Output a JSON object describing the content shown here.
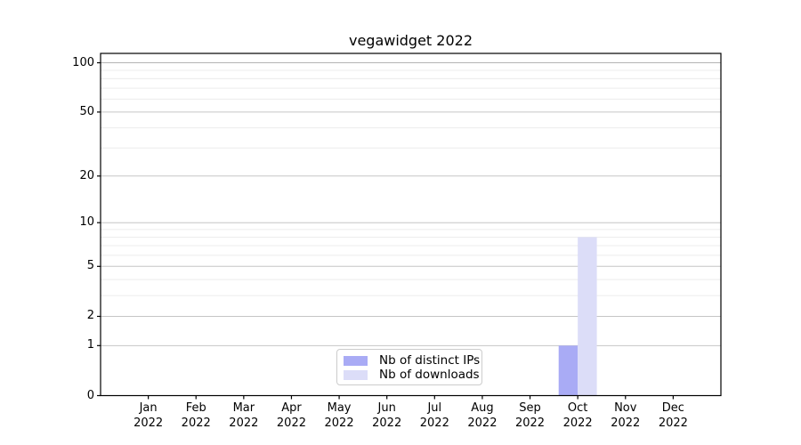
{
  "title": "vegawidget 2022",
  "colors": {
    "distinct_ips": "#a9abf5",
    "downloads": "#dcddf8",
    "major_grid": "#c6c6c6",
    "top_grid": "#b4b4b4",
    "minor_grid": "#ececec",
    "axis": "#000000",
    "background": "#ffffff",
    "legend_border": "#cccccc"
  },
  "legend": {
    "items": [
      {
        "label": "Nb of distinct IPs",
        "color": "#a9abf5"
      },
      {
        "label": "Nb of downloads",
        "color": "#dcddf8"
      }
    ]
  },
  "chart_data": {
    "type": "bar",
    "title": "vegawidget 2022",
    "categories": [
      "Jan 2022",
      "Feb 2022",
      "Mar 2022",
      "Apr 2022",
      "May 2022",
      "Jun 2022",
      "Jul 2022",
      "Aug 2022",
      "Sep 2022",
      "Oct 2022",
      "Nov 2022",
      "Dec 2022"
    ],
    "series": [
      {
        "name": "Nb of distinct IPs",
        "color": "#a9abf5",
        "values": [
          0,
          0,
          0,
          0,
          0,
          0,
          0,
          0,
          0,
          1,
          0,
          0
        ]
      },
      {
        "name": "Nb of downloads",
        "color": "#dcddf8",
        "values": [
          0,
          0,
          0,
          0,
          0,
          0,
          0,
          0,
          0,
          8,
          0,
          0
        ]
      }
    ],
    "xlabel": "",
    "ylabel": "",
    "y_scale": "log1p",
    "ylim": [
      0,
      114
    ],
    "y_ticks": [
      0,
      1,
      2,
      5,
      10,
      20,
      50,
      100
    ],
    "y_tick_labels": [
      "0",
      "1",
      "2",
      "5",
      "10",
      "20",
      "50",
      "100"
    ],
    "y_minor_ticks": [
      3,
      4,
      6,
      7,
      8,
      9,
      30,
      40,
      60,
      70,
      80,
      90
    ],
    "grid": "horizontal",
    "legend_position": "lower-center-inside"
  }
}
